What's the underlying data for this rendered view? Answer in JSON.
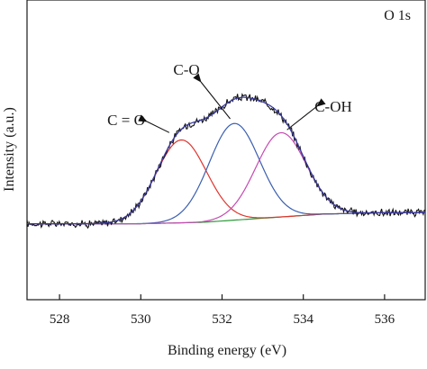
{
  "chart_data": {
    "type": "line",
    "panel_label": "O 1s",
    "xlabel": "Binding energy (eV)",
    "ylabel": "Intensity (a.u.)",
    "xlim": [
      527.2,
      537.0
    ],
    "ylim": [
      -0.55,
      1.62
    ],
    "x_ticks": [
      528,
      530,
      532,
      534,
      536
    ],
    "x_tick_labels": [
      "528",
      "530",
      "532",
      "534",
      "536"
    ],
    "grid": false,
    "legend": "none",
    "peaks": [
      {
        "label": "C = O",
        "center": 531.0,
        "height": 0.6,
        "sigma": 0.62,
        "color": "#e0342d"
      },
      {
        "label": "C-O",
        "center": 532.3,
        "height": 0.7,
        "sigma": 0.62,
        "color": "#3a5fb0"
      },
      {
        "label": "C-OH",
        "center": 533.45,
        "height": 0.61,
        "sigma": 0.62,
        "color": "#c54bb2"
      }
    ],
    "baseline": {
      "color": "#2d9a3a",
      "points": [
        [
          527.2,
          0.0
        ],
        [
          530.0,
          0.0
        ],
        [
          531.5,
          0.01
        ],
        [
          533.0,
          0.04
        ],
        [
          534.5,
          0.07
        ],
        [
          536.0,
          0.08
        ],
        [
          537.0,
          0.08
        ]
      ]
    },
    "envelope_color": "#3a3aa0",
    "raw_color": "#111111",
    "annotations": [
      {
        "text": "C = O",
        "points_to_x": 530.7,
        "points_to_y": 0.66
      },
      {
        "text": "C-O",
        "points_to_x": 532.2,
        "points_to_y": 0.76
      },
      {
        "text": "C-OH",
        "points_to_x": 533.6,
        "points_to_y": 0.68
      }
    ]
  }
}
